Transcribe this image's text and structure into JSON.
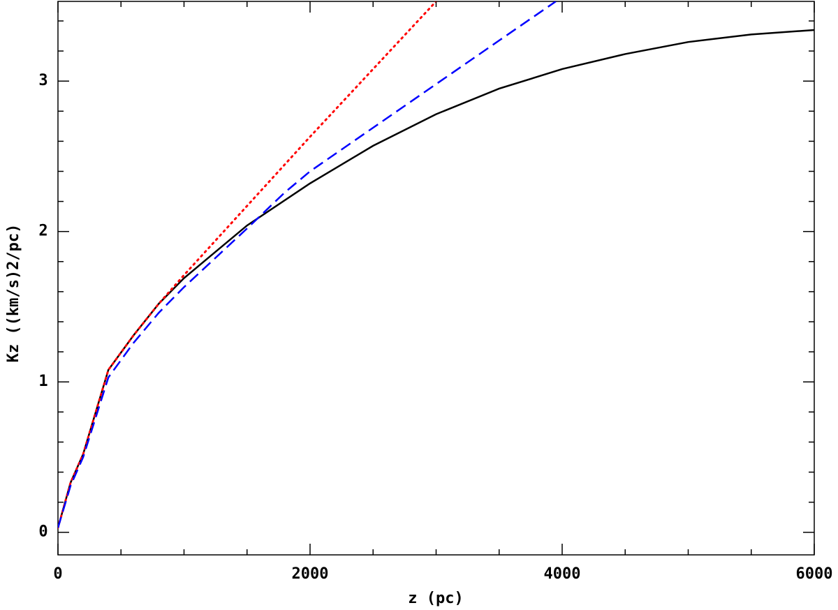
{
  "chart_data": {
    "type": "line",
    "xlabel": "z (pc)",
    "ylabel": "Kz ((km/s)2/pc)",
    "xlim": [
      0,
      6000
    ],
    "ylim": [
      -0.15,
      3.53
    ],
    "xticks": [
      0,
      2000,
      4000,
      6000
    ],
    "yticks": [
      0,
      1,
      2,
      3
    ],
    "xminorticks": [
      500,
      1000,
      1500,
      2500,
      3000,
      3500,
      4500,
      5000,
      5500
    ],
    "yminorticks": [
      0.2,
      0.4,
      0.6,
      0.8,
      1.2,
      1.4,
      1.6,
      1.8,
      2.2,
      2.4,
      2.6,
      2.8,
      3.2,
      3.4
    ],
    "series": [
      {
        "color": "#000000",
        "dash": "solid",
        "x": [
          0,
          100,
          200,
          400,
          600,
          800,
          1000,
          1200,
          1500,
          2000,
          2500,
          3000,
          3500,
          4000,
          4500,
          5000,
          5500,
          6000
        ],
        "values": [
          0.03,
          0.33,
          0.52,
          1.08,
          1.31,
          1.52,
          1.69,
          1.83,
          2.04,
          2.32,
          2.57,
          2.78,
          2.95,
          3.08,
          3.18,
          3.26,
          3.31,
          3.34
        ]
      },
      {
        "color": "#ff0000",
        "dash": "dotted",
        "x": [
          0,
          100,
          200,
          400,
          600,
          800,
          1000,
          1500,
          2000,
          2500,
          3000
        ],
        "values": [
          0.03,
          0.33,
          0.52,
          1.08,
          1.31,
          1.52,
          1.71,
          2.17,
          2.63,
          3.08,
          3.53
        ]
      },
      {
        "color": "#0000ff",
        "dash": "dashed",
        "x": [
          0,
          100,
          200,
          400,
          600,
          800,
          1000,
          1500,
          1800,
          2000,
          2500,
          3000,
          3500,
          3950
        ],
        "values": [
          0.03,
          0.31,
          0.5,
          1.03,
          1.26,
          1.46,
          1.63,
          2.02,
          2.26,
          2.4,
          2.69,
          2.98,
          3.27,
          3.53
        ]
      }
    ]
  }
}
